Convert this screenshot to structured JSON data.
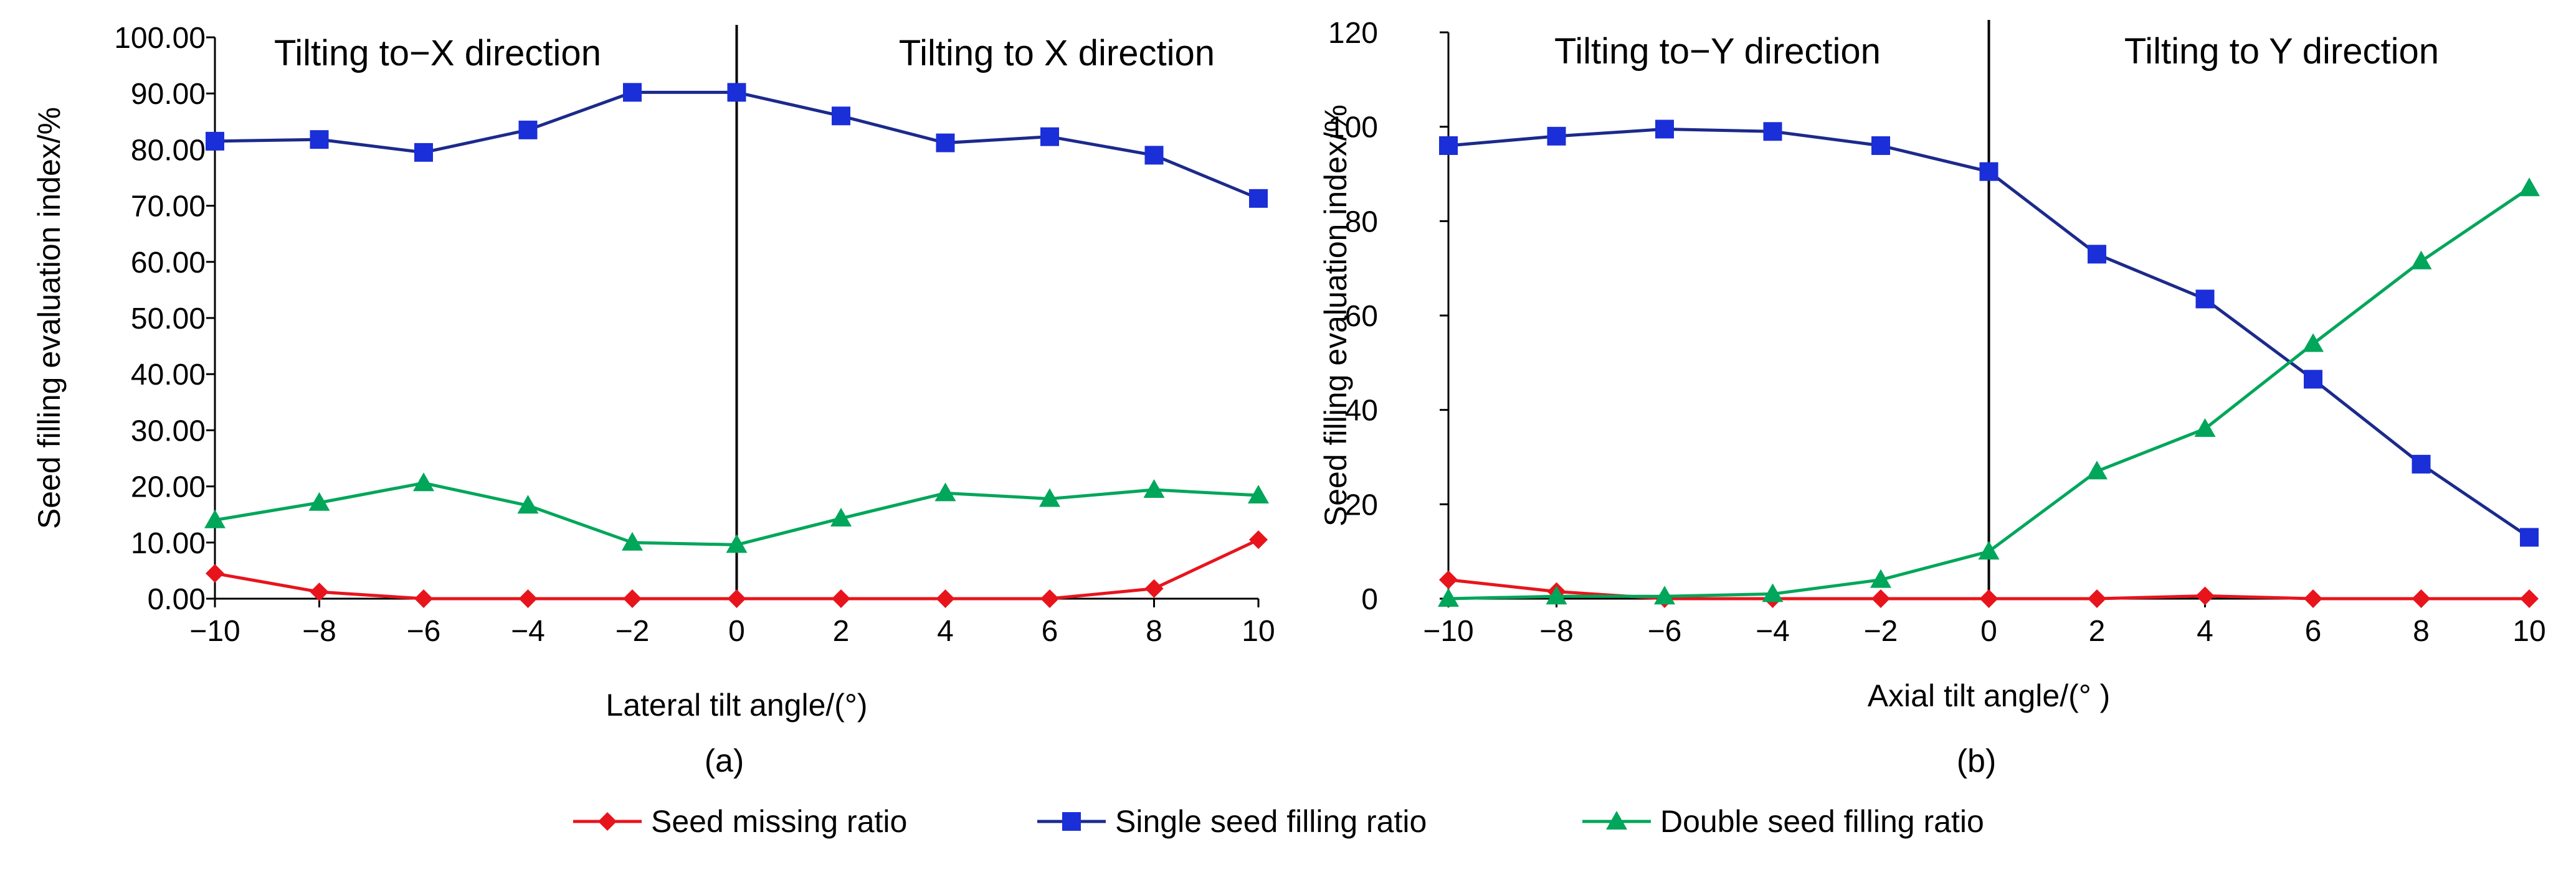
{
  "chart_data": [
    {
      "type": "line",
      "panel_label": "(a)",
      "xlabel": "Lateral tilt angle/(°)",
      "ylabel": "Seed filling evaluation index/%",
      "xlim": [
        -10,
        10
      ],
      "ylim": [
        0,
        100
      ],
      "x": [
        -10,
        -8,
        -6,
        -4,
        -2,
        0,
        2,
        4,
        6,
        8,
        10
      ],
      "x_tick_labels": [
        "−10",
        "−8",
        "−6",
        "−4",
        "−2",
        "0",
        "2",
        "4",
        "6",
        "8",
        "10"
      ],
      "y_ticks": [
        0,
        10,
        20,
        30,
        40,
        50,
        60,
        70,
        80,
        90,
        100
      ],
      "y_tick_labels": [
        "0.00",
        "10.00",
        "20.00",
        "30.00",
        "40.00",
        "50.00",
        "60.00",
        "70.00",
        "80.00",
        "90.00",
        "100.00"
      ],
      "divider_x": 0,
      "region_labels": {
        "left": "Tilting to−X direction",
        "right": "Tilting to X direction"
      },
      "series": [
        {
          "name": "Seed missing ratio",
          "color": "#e8141c",
          "marker": "diamond",
          "values": [
            4.5,
            1.2,
            0,
            0,
            0,
            0,
            0,
            0,
            0,
            1.8,
            10.5
          ]
        },
        {
          "name": "Single seed filling ratio",
          "color": "#1c2a8c",
          "marker_color": "#1a2fd8",
          "marker": "square",
          "values": [
            81.5,
            81.8,
            79.5,
            83.5,
            90.2,
            90.2,
            86.0,
            81.2,
            82.3,
            79.0,
            71.3
          ]
        },
        {
          "name": "Double seed filling ratio",
          "color": "#00a65a",
          "marker": "triangle",
          "values": [
            14.0,
            17.1,
            20.6,
            16.6,
            10.0,
            9.6,
            14.3,
            18.8,
            17.8,
            19.4,
            18.4
          ]
        }
      ]
    },
    {
      "type": "line",
      "panel_label": "(b)",
      "xlabel": "Axial tilt angle/(°  )",
      "ylabel": "Seed filling evaluation index/%",
      "xlim": [
        -10,
        10
      ],
      "ylim": [
        0,
        120
      ],
      "x": [
        -10,
        -8,
        -6,
        -4,
        -2,
        0,
        2,
        4,
        6,
        8,
        10
      ],
      "x_tick_labels": [
        "−10",
        "−8",
        "−6",
        "−4",
        "−2",
        "0",
        "2",
        "4",
        "6",
        "8",
        "10"
      ],
      "y_ticks": [
        0,
        20,
        40,
        60,
        80,
        100,
        120
      ],
      "y_tick_labels": [
        "0",
        "20",
        "40",
        "60",
        "80",
        "100",
        "120"
      ],
      "divider_x": 0,
      "region_labels": {
        "left": "Tilting to−Y direction",
        "right": "Tilting to Y direction"
      },
      "series": [
        {
          "name": "Seed missing ratio",
          "color": "#e8141c",
          "marker": "diamond",
          "values": [
            4.0,
            1.5,
            0,
            0,
            0,
            0,
            0,
            0.6,
            0,
            0,
            0
          ]
        },
        {
          "name": "Single seed filling ratio",
          "color": "#1c2a8c",
          "marker_color": "#1a2fd8",
          "marker": "square",
          "values": [
            96.0,
            98.0,
            99.5,
            99.0,
            96.0,
            90.5,
            73.0,
            63.5,
            46.5,
            28.5,
            13.0
          ]
        },
        {
          "name": "Double seed filling ratio",
          "color": "#00a65a",
          "marker": "triangle",
          "values": [
            0,
            0.5,
            0.5,
            1.0,
            4.0,
            10.0,
            27.0,
            36.0,
            54.0,
            71.5,
            87.0
          ]
        }
      ]
    }
  ],
  "legend": {
    "items": [
      {
        "label": "Seed missing ratio",
        "color": "#e8141c",
        "marker": "diamond"
      },
      {
        "label": "Single seed filling ratio",
        "color": "#1c2a8c",
        "marker_color": "#1a2fd8",
        "marker": "square"
      },
      {
        "label": "Double seed filling ratio",
        "color": "#00a65a",
        "marker": "triangle"
      }
    ]
  }
}
